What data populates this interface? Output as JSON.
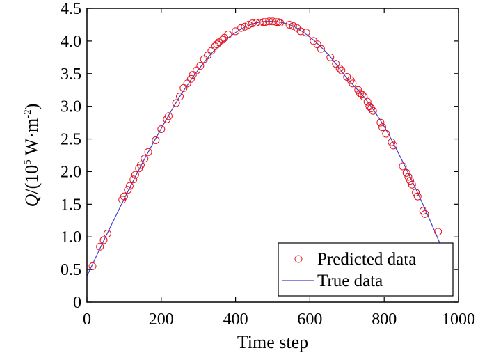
{
  "chart_data": {
    "type": "scatter",
    "title": "",
    "xlabel": "Time step",
    "ylabel": {
      "var": "Q",
      "prefix": "/(10",
      "exp1": "5",
      "mid": " W·m",
      "exp2": "-2",
      "suffix": ")"
    },
    "xlim": [
      0,
      1000
    ],
    "ylim": [
      0,
      4.5
    ],
    "xticks": [
      "0",
      "200",
      "400",
      "600",
      "800",
      "1000"
    ],
    "yticks": [
      "0",
      "0.5",
      "1.0",
      "1.5",
      "2.0",
      "2.5",
      "3.0",
      "3.5",
      "4.0",
      "4.5"
    ],
    "grid": false,
    "legend_position": "bottom-right",
    "series": [
      {
        "name": "Predicted data",
        "kind": "scatter",
        "marker": "circle",
        "color": "#e8141e",
        "x": [
          15,
          35,
          45,
          55,
          95,
          100,
          110,
          115,
          125,
          130,
          140,
          145,
          155,
          165,
          185,
          200,
          215,
          220,
          240,
          250,
          260,
          270,
          280,
          285,
          295,
          305,
          315,
          325,
          335,
          345,
          350,
          355,
          365,
          370,
          380,
          400,
          415,
          425,
          435,
          445,
          455,
          465,
          475,
          480,
          490,
          500,
          510,
          515,
          520,
          545,
          555,
          565,
          575,
          590,
          610,
          620,
          630,
          655,
          670,
          680,
          685,
          700,
          710,
          715,
          730,
          735,
          740,
          745,
          755,
          760,
          765,
          770,
          790,
          795,
          805,
          820,
          825,
          850,
          860,
          865,
          870,
          875,
          885,
          890,
          905,
          910,
          945
        ],
        "y": [
          0.55,
          0.85,
          0.95,
          1.05,
          1.57,
          1.62,
          1.72,
          1.78,
          1.88,
          1.95,
          2.05,
          2.1,
          2.2,
          2.3,
          2.48,
          2.65,
          2.8,
          2.85,
          3.05,
          3.15,
          3.28,
          3.35,
          3.42,
          3.48,
          3.55,
          3.62,
          3.72,
          3.78,
          3.85,
          3.92,
          3.95,
          3.98,
          4.02,
          4.05,
          4.1,
          4.15,
          4.2,
          4.22,
          4.25,
          4.27,
          4.28,
          4.28,
          4.29,
          4.29,
          4.3,
          4.3,
          4.29,
          4.29,
          4.28,
          4.25,
          4.23,
          4.2,
          4.15,
          4.13,
          4.0,
          3.95,
          3.88,
          3.75,
          3.65,
          3.58,
          3.55,
          3.45,
          3.4,
          3.35,
          3.25,
          3.2,
          3.18,
          3.15,
          3.07,
          3.0,
          2.97,
          2.93,
          2.75,
          2.68,
          2.58,
          2.45,
          2.4,
          2.08,
          1.98,
          1.92,
          1.86,
          1.8,
          1.68,
          1.62,
          1.4,
          1.35,
          1.08
        ]
      },
      {
        "name": "True data",
        "kind": "line",
        "color": "#4040c8",
        "x": [
          0,
          50,
          100,
          150,
          200,
          250,
          300,
          350,
          400,
          450,
          500,
          550,
          600,
          650,
          700,
          750,
          800,
          850,
          900,
          950,
          975
        ],
        "y": [
          0.4,
          1.0,
          1.58,
          2.14,
          2.66,
          3.15,
          3.56,
          3.9,
          4.13,
          4.27,
          4.3,
          4.24,
          4.06,
          3.79,
          3.43,
          3.11,
          2.69,
          2.15,
          1.55,
          0.9,
          0.55
        ]
      }
    ]
  }
}
